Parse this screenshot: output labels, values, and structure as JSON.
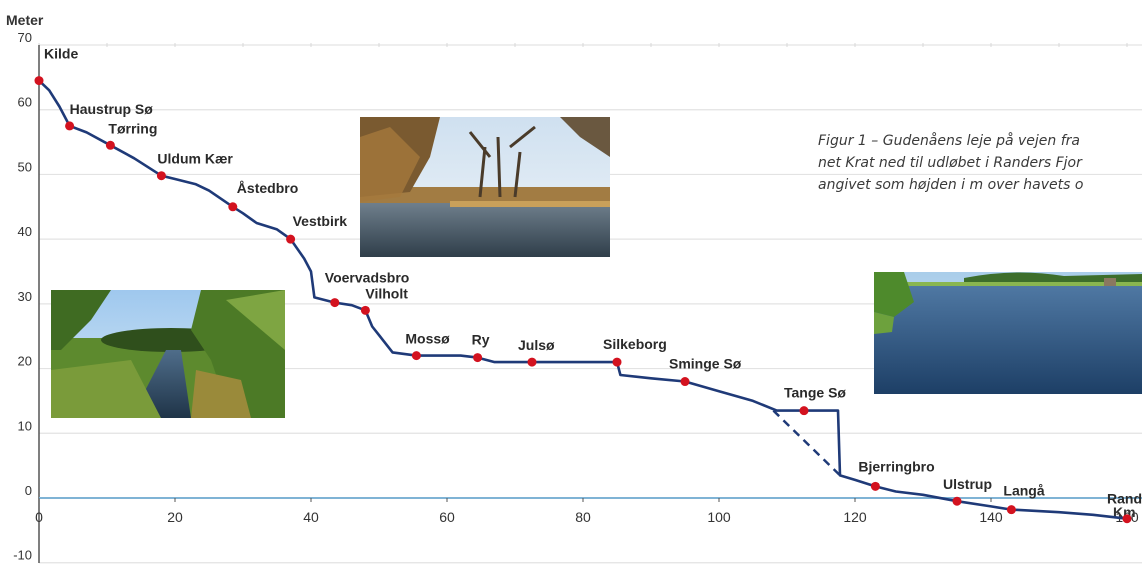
{
  "chart_data": {
    "type": "line",
    "title": "",
    "ylabel": "Meter",
    "xlabel": "Km",
    "xlim": [
      0,
      160
    ],
    "ylim": [
      -10,
      70
    ],
    "x_ticks": [
      0,
      20,
      40,
      60,
      80,
      100,
      120,
      140,
      160
    ],
    "y_ticks": [
      -10,
      0,
      10,
      20,
      30,
      40,
      50,
      60,
      70
    ],
    "x_tick_labels": [
      "0",
      "20",
      "40",
      "60",
      "80",
      "100",
      "120",
      "140",
      "160"
    ],
    "y_tick_labels": [
      "-10",
      "0",
      "10",
      "20",
      "30",
      "40",
      "50",
      "60",
      "70"
    ],
    "grid": true,
    "profile": [
      [
        0,
        64.5
      ],
      [
        1.5,
        63
      ],
      [
        3,
        60.5
      ],
      [
        4.5,
        57.5
      ],
      [
        7,
        56.5
      ],
      [
        10.5,
        54.5
      ],
      [
        14,
        52.5
      ],
      [
        18,
        49.8
      ],
      [
        20,
        49.3
      ],
      [
        23,
        48.5
      ],
      [
        25,
        47.5
      ],
      [
        28.5,
        45
      ],
      [
        30,
        44
      ],
      [
        32,
        42.5
      ],
      [
        35,
        41.5
      ],
      [
        37,
        40
      ],
      [
        39,
        37
      ],
      [
        40,
        35
      ],
      [
        40.5,
        31
      ],
      [
        42,
        30.6
      ],
      [
        43.5,
        30.2
      ],
      [
        46,
        29.8
      ],
      [
        48,
        29
      ],
      [
        49,
        26.5
      ],
      [
        50.5,
        24.5
      ],
      [
        52,
        22.5
      ],
      [
        55.5,
        22
      ],
      [
        58,
        22
      ],
      [
        62,
        22
      ],
      [
        64.5,
        21.7
      ],
      [
        67,
        21
      ],
      [
        72.5,
        21
      ],
      [
        78,
        21
      ],
      [
        85,
        21
      ],
      [
        85.5,
        19
      ],
      [
        90,
        18.5
      ],
      [
        95,
        18
      ],
      [
        100,
        16.5
      ],
      [
        105,
        15
      ],
      [
        108.5,
        13.5
      ],
      [
        112.5,
        13.5
      ],
      [
        117.5,
        13.5
      ],
      [
        117.8,
        3.5
      ],
      [
        120,
        2.8
      ],
      [
        123,
        1.8
      ],
      [
        126,
        1
      ],
      [
        130,
        0.5
      ],
      [
        135,
        -0.5
      ],
      [
        140,
        -1.3
      ],
      [
        143,
        -1.8
      ],
      [
        150,
        -2.2
      ],
      [
        155,
        -2.6
      ],
      [
        160,
        -3.2
      ]
    ],
    "old_course_dashed": [
      [
        108,
        13.5
      ],
      [
        117.8,
        3.5
      ]
    ],
    "places": [
      {
        "name": "Kilde",
        "km": 0,
        "m": 64.5
      },
      {
        "name": "Haustrup Sø",
        "km": 4.5,
        "m": 57.5
      },
      {
        "name": "Tørring",
        "km": 10.5,
        "m": 54.5
      },
      {
        "name": "Uldum Kær",
        "km": 18,
        "m": 49.8
      },
      {
        "name": "Åstedbro",
        "km": 28.5,
        "m": 45
      },
      {
        "name": "Vestbirk",
        "km": 37,
        "m": 40
      },
      {
        "name": "Voervadsbro",
        "km": 43.5,
        "m": 30.2
      },
      {
        "name": "Vilholt",
        "km": 48,
        "m": 29
      },
      {
        "name": "Mossø",
        "km": 55.5,
        "m": 22
      },
      {
        "name": "Ry",
        "km": 64.5,
        "m": 21.7
      },
      {
        "name": "Julsø",
        "km": 72.5,
        "m": 21
      },
      {
        "name": "Silkeborg",
        "km": 85,
        "m": 21
      },
      {
        "name": "Sminge Sø",
        "km": 95,
        "m": 18
      },
      {
        "name": "Tange Sø",
        "km": 112.5,
        "m": 13.5
      },
      {
        "name": "Bjerringbro",
        "km": 123,
        "m": 1.8
      },
      {
        "name": "Ulstrup",
        "km": 135,
        "m": -0.5
      },
      {
        "name": "Langå",
        "km": 143,
        "m": -1.8
      },
      {
        "name": "Randers",
        "km": 160,
        "m": -3.2
      }
    ],
    "colors": {
      "line": "#1f3a78",
      "point": "#d3121f",
      "grid": "#e3e3e3",
      "zero_line": "#7fb3d5",
      "axis": "#555555"
    }
  },
  "caption": {
    "line1": "Figur 1 – Gudenåens leje på vejen fra",
    "line2": "net Krat ned til udløbet i Randers Fjor",
    "line3": "angivet som højden i m over havets o"
  },
  "photos": [
    {
      "name": "stream-meadow-photo"
    },
    {
      "name": "river-trees-photo"
    },
    {
      "name": "wide-river-photo"
    }
  ]
}
